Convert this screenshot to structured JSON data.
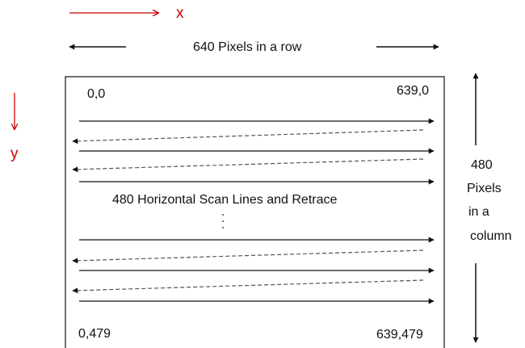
{
  "axes": {
    "x_label": "x",
    "y_label": "y",
    "color": "#cc0000"
  },
  "width_label": "640 Pixels in a row",
  "height_label": {
    "line1": "480",
    "line2": "Pixels",
    "line3": "in a",
    "line4": "column"
  },
  "corners": {
    "top_left": "0,0",
    "top_right": "639,0",
    "bottom_left": "0,479",
    "bottom_right": "639,479"
  },
  "center_label": "480 Horizontal Scan Lines and Retrace",
  "ellipsis": ".\n.\n.",
  "colors": {
    "scan_line": "#111111",
    "retrace_line": "#555555"
  }
}
